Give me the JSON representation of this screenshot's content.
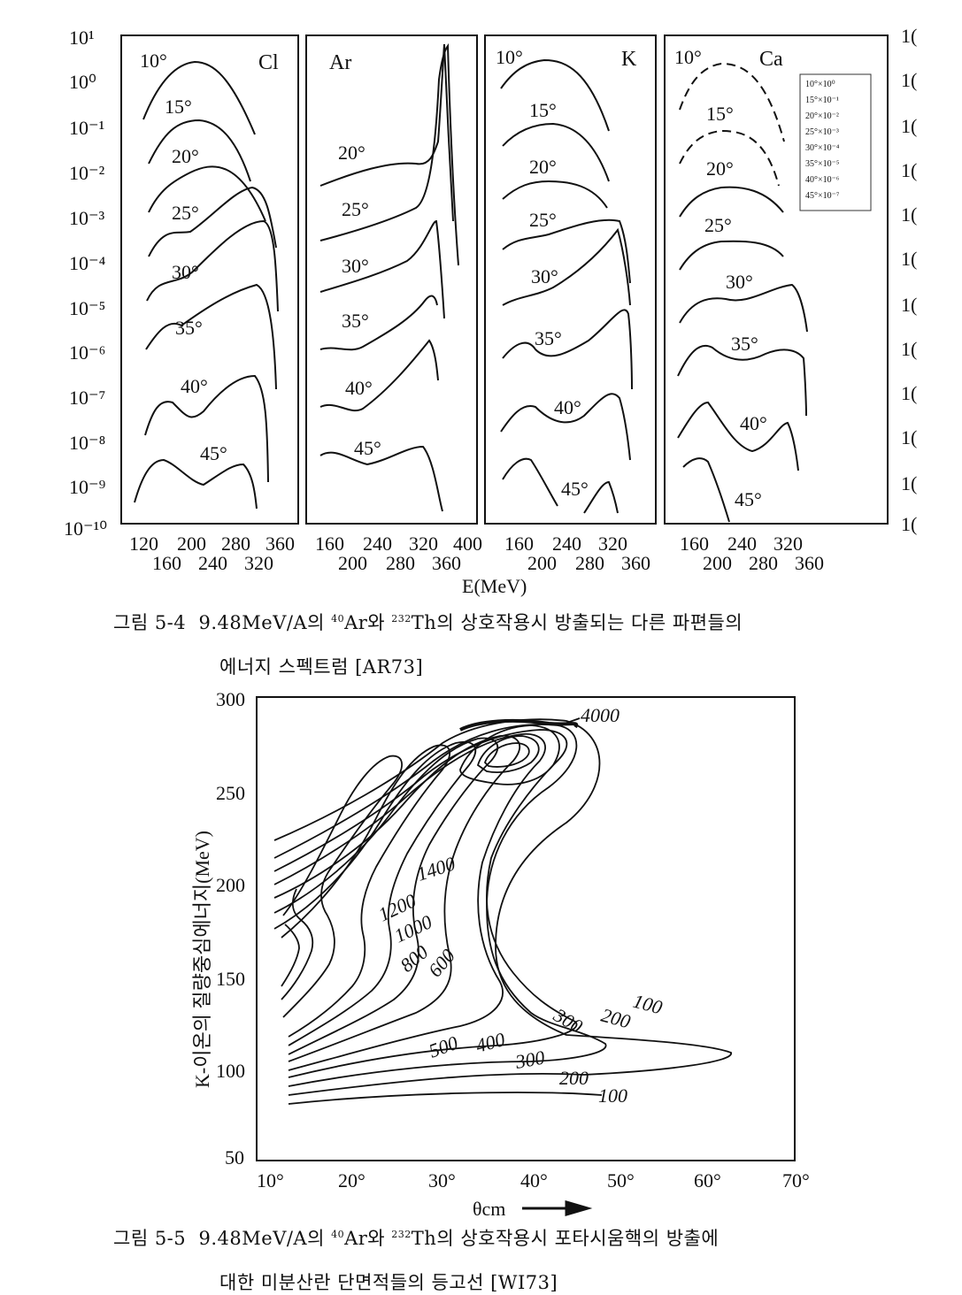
{
  "figure1": {
    "caption_line1_parts": {
      "label": "그림 5-4",
      "pre": "9.48MeV/A의 ",
      "ar_mass": "40",
      "ar": "Ar와 ",
      "th_mass": "232",
      "th": "Th의 상호작용시 방출되는 다른 파편들의"
    },
    "caption_line2": "에너지 스펙트럼 [AR73]",
    "y_axis_left_ticks": [
      "10¹",
      "10⁰",
      "10⁻¹",
      "10⁻²",
      "10⁻³",
      "10⁻⁴",
      "10⁻⁵",
      "10⁻⁶",
      "10⁻⁷",
      "10⁻⁸",
      "10⁻⁹",
      "10⁻¹⁰"
    ],
    "y_axis_right_ticks": [
      "1(",
      "1(",
      "1(",
      "1(",
      "1(",
      "1(",
      "1(",
      "1(",
      "1(",
      "1(",
      "1(",
      "1("
    ],
    "x_label": "E(MeV)",
    "legend_entries": [
      "10°×10⁰",
      "15°×10⁻¹",
      "20°×10⁻²",
      "25°×10⁻³",
      "30°×10⁻⁴",
      "35°×10⁻⁵",
      "40°×10⁻⁶",
      "45°×10⁻⁷"
    ],
    "panels": [
      {
        "element": "Cl",
        "angle_labels": [
          "10°",
          "15°",
          "20°",
          "25°",
          "30°",
          "35°",
          "40°",
          "45°"
        ],
        "ticks_upper": [
          "120",
          "200",
          "280",
          "360"
        ],
        "ticks_lower": [
          "160",
          "240",
          "320"
        ]
      },
      {
        "element": "Ar",
        "angle_labels": [
          "20°",
          "25°",
          "30°",
          "35°",
          "40°",
          "45°"
        ],
        "ticks_upper": [
          "160",
          "240",
          "320",
          "400"
        ],
        "ticks_lower": [
          "200",
          "280",
          "360"
        ]
      },
      {
        "element": "K",
        "angle_labels": [
          "10°",
          "15°",
          "20°",
          "25°",
          "30°",
          "35°",
          "40°",
          "45°"
        ],
        "ticks_upper": [
          "160",
          "240",
          "320"
        ],
        "ticks_lower": [
          "200",
          "280",
          "360"
        ]
      },
      {
        "element": "Ca",
        "angle_labels": [
          "10°",
          "15°",
          "20°",
          "25°",
          "30°",
          "35°",
          "40°",
          "45°"
        ],
        "ticks_upper": [
          "160",
          "240",
          "320"
        ],
        "ticks_lower": [
          "200",
          "280",
          "360"
        ]
      }
    ]
  },
  "figure2": {
    "caption_line1_parts": {
      "label": "그림 5-5",
      "pre": "9.48MeV/A의 ",
      "ar_mass": "40",
      "ar": "Ar와 ",
      "th_mass": "232",
      "th": "Th의 상호작용시 포타시움핵의 방출에"
    },
    "caption_line2": "대한 미분산란 단면적들의 등고선 [WI73]",
    "y_label": "K-이온의 질량중심에너지(MeV)",
    "x_label": "θcm",
    "y_ticks": [
      "300",
      "250",
      "200",
      "150",
      "100",
      "50"
    ],
    "x_ticks": [
      "10°",
      "20°",
      "30°",
      "40°",
      "50°",
      "60°",
      "70°"
    ],
    "contour_labels": [
      "4000",
      "1400",
      "1200",
      "1000",
      "800",
      "600",
      "500",
      "400",
      "300",
      "200",
      "100",
      "100",
      "200",
      "300"
    ]
  }
}
